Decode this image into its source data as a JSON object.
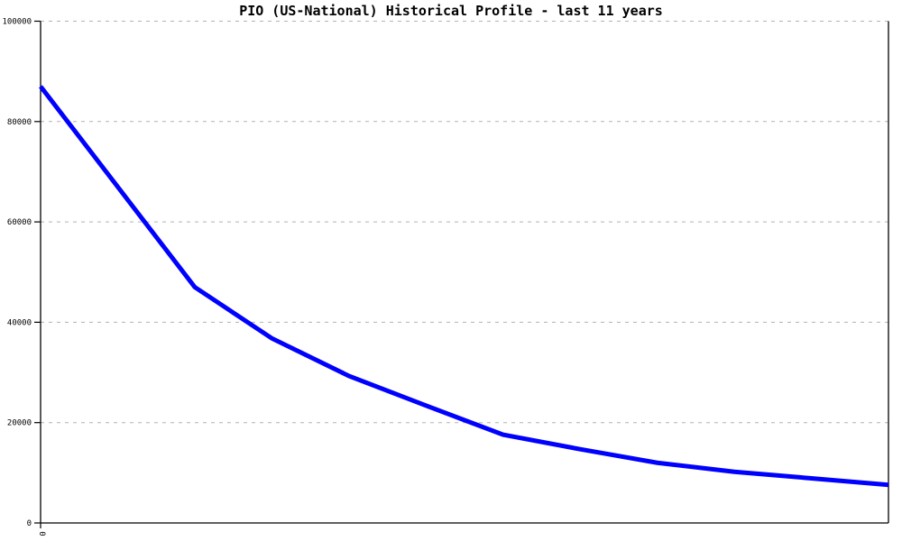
{
  "title": "PIO (US-National) Historical Profile - last 11 years",
  "colors": {
    "background": "#ffffff",
    "line": "#0000ff",
    "grid": "#b2b2b2",
    "axis": "#000000",
    "text": "#000000"
  },
  "chart_data": {
    "type": "line",
    "title": "PIO (US-National) Historical Profile - last 11 years",
    "x": [
      0,
      1,
      2,
      3,
      4,
      5,
      6,
      7,
      8,
      9,
      10,
      11
    ],
    "series": [
      {
        "name": "PIO (US-National)",
        "values": [
          87000,
          67000,
          47000,
          36800,
          29300,
          23400,
          17600,
          14700,
          12000,
          10200,
          8900,
          7600
        ],
        "color": "#0000ff"
      }
    ],
    "xlabel": "",
    "ylabel": "",
    "xlim": [
      0,
      11
    ],
    "ylim": [
      0,
      100000
    ],
    "y_ticks": [
      0,
      20000,
      40000,
      60000,
      80000,
      100000
    ],
    "y_tick_labels": [
      "0",
      "20000",
      "40000",
      "60000",
      "80000",
      "100000"
    ],
    "x_ticks": [
      0
    ],
    "x_tick_labels": [
      "0"
    ],
    "x_tick_label_rotation_deg": 90,
    "grid": "horizontal dashed gray lines at each y tick",
    "legend": "none"
  }
}
